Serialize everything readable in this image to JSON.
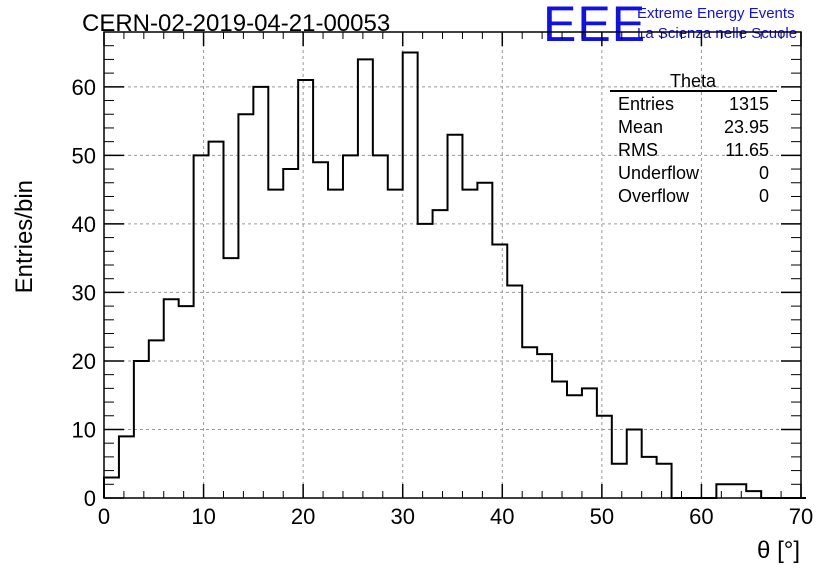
{
  "title": "CERN-02-2019-04-21-00053",
  "logo": {
    "mark": "EEE",
    "line1": "Extreme Energy Events",
    "line2": "La Scienza nelle Scuole",
    "color": "#1010e8"
  },
  "chart_data": {
    "type": "histogram",
    "xlabel": "θ [°]",
    "ylabel": "Entries/bin",
    "xlim": [
      0,
      70
    ],
    "ylim": [
      0,
      68
    ],
    "grid": true,
    "bin_width": 1.5,
    "bin_start": 0,
    "values": [
      3,
      9,
      20,
      23,
      29,
      28,
      50,
      52,
      35,
      56,
      60,
      45,
      48,
      61,
      49,
      45,
      50,
      64,
      50,
      45,
      65,
      40,
      42,
      53,
      45,
      46,
      37,
      31,
      22,
      21,
      17,
      15,
      16,
      12,
      5,
      10,
      6,
      5,
      0,
      0,
      0,
      2,
      2,
      1,
      0,
      0,
      0
    ],
    "x_ticks": [
      0,
      10,
      20,
      30,
      40,
      50,
      60,
      70
    ],
    "y_ticks": [
      0,
      10,
      20,
      30,
      40,
      50,
      60
    ],
    "stats_box": {
      "name": "Theta",
      "rows": [
        {
          "label": "Entries",
          "value": "1315"
        },
        {
          "label": "Mean",
          "value": "23.95"
        },
        {
          "label": "RMS",
          "value": "11.65"
        },
        {
          "label": "Underflow",
          "value": "0"
        },
        {
          "label": "Overflow",
          "value": "0"
        }
      ]
    }
  }
}
